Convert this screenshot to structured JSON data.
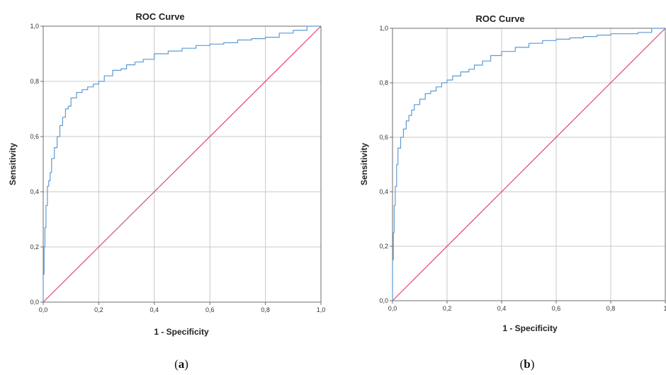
{
  "colors": {
    "curve": "#5b9bd5",
    "reference": "#e0457b",
    "grid": "#c8c8c8",
    "frame": "#6e6e6e"
  },
  "chart_data": [
    {
      "type": "line",
      "title": "ROC Curve",
      "xlabel": "1 - Specificity",
      "ylabel": "Sensitivity",
      "xlim": [
        0,
        1
      ],
      "ylim": [
        0,
        1
      ],
      "x_ticks": [
        "0,0",
        "0,2",
        "0,4",
        "0,6",
        "0,8",
        "1,0"
      ],
      "y_ticks": [
        "0,0",
        "0,2",
        "0,4",
        "0,6",
        "0,8",
        "1,0"
      ],
      "grid": true,
      "caption_letter": "a",
      "series": [
        {
          "x": [
            0,
            0.003,
            0.006,
            0.01,
            0.015,
            0.02,
            0.025,
            0.03,
            0.04,
            0.05,
            0.06,
            0.07,
            0.08,
            0.09,
            0.1,
            0.12,
            0.14,
            0.16,
            0.18,
            0.2,
            0.22,
            0.25,
            0.28,
            0.3,
            0.33,
            0.36,
            0.4,
            0.45,
            0.5,
            0.55,
            0.6,
            0.65,
            0.7,
            0.75,
            0.8,
            0.85,
            0.9,
            0.95,
            1.0
          ],
          "y": [
            0,
            0.1,
            0.2,
            0.27,
            0.35,
            0.42,
            0.44,
            0.47,
            0.52,
            0.56,
            0.6,
            0.64,
            0.67,
            0.7,
            0.71,
            0.74,
            0.76,
            0.77,
            0.78,
            0.79,
            0.8,
            0.82,
            0.84,
            0.845,
            0.86,
            0.87,
            0.88,
            0.9,
            0.91,
            0.92,
            0.93,
            0.935,
            0.94,
            0.95,
            0.955,
            0.96,
            0.975,
            0.985,
            1.0
          ]
        },
        {
          "x": [
            0,
            1
          ],
          "y": [
            0,
            1
          ]
        }
      ]
    },
    {
      "type": "line",
      "title": "ROC Curve",
      "xlabel": "1 - Specificity",
      "ylabel": "Sensitivity",
      "xlim": [
        0,
        1
      ],
      "ylim": [
        0,
        1
      ],
      "x_ticks": [
        "0,0",
        "0,2",
        "0,4",
        "0,6",
        "0,8",
        "1"
      ],
      "y_ticks": [
        "0,0",
        "0,2",
        "0,4",
        "0,6",
        "0,8",
        "1,0"
      ],
      "grid": true,
      "caption_letter": "b",
      "series": [
        {
          "x": [
            0,
            0.003,
            0.006,
            0.01,
            0.015,
            0.02,
            0.03,
            0.04,
            0.05,
            0.06,
            0.07,
            0.08,
            0.1,
            0.12,
            0.14,
            0.16,
            0.18,
            0.2,
            0.22,
            0.25,
            0.28,
            0.3,
            0.33,
            0.36,
            0.4,
            0.45,
            0.5,
            0.55,
            0.6,
            0.65,
            0.7,
            0.75,
            0.8,
            0.85,
            0.9,
            0.95,
            1.0
          ],
          "y": [
            0,
            0.15,
            0.25,
            0.35,
            0.42,
            0.5,
            0.56,
            0.6,
            0.63,
            0.66,
            0.68,
            0.7,
            0.72,
            0.74,
            0.76,
            0.77,
            0.785,
            0.8,
            0.81,
            0.825,
            0.84,
            0.85,
            0.865,
            0.88,
            0.9,
            0.915,
            0.93,
            0.945,
            0.955,
            0.96,
            0.965,
            0.97,
            0.975,
            0.98,
            0.98,
            0.985,
            1.0
          ]
        },
        {
          "x": [
            0,
            1
          ],
          "y": [
            0,
            1
          ]
        }
      ]
    }
  ]
}
